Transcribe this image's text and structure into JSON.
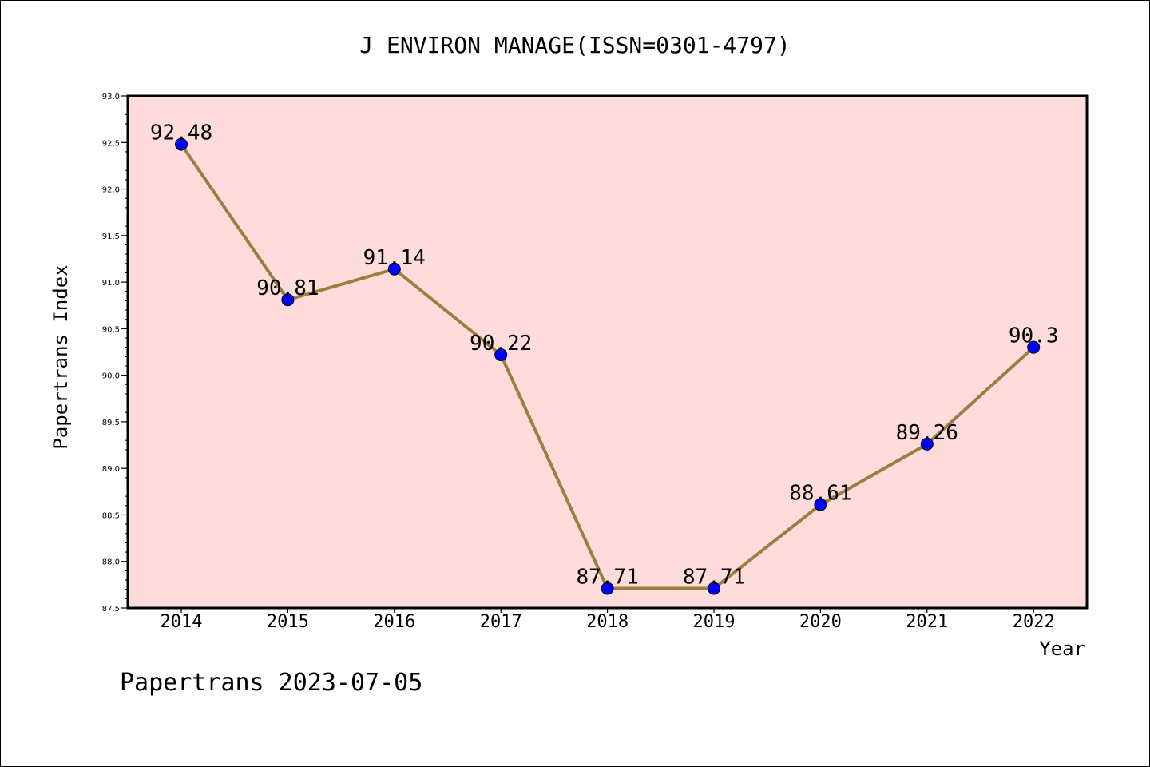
{
  "chart_data": {
    "type": "line",
    "title": "J ENVIRON MANAGE(ISSN=0301-4797)",
    "xlabel": "Year",
    "ylabel": "Papertrans Index",
    "categories": [
      "2014",
      "2015",
      "2016",
      "2017",
      "2018",
      "2019",
      "2020",
      "2021",
      "2022"
    ],
    "values": [
      92.48,
      90.81,
      91.14,
      90.22,
      87.71,
      87.71,
      88.61,
      89.26,
      90.3
    ],
    "data_labels": [
      "92.48",
      "90.81",
      "91.14",
      "90.22",
      "87.71",
      "87.71",
      "88.61",
      "89.26",
      "90.3"
    ],
    "ylim": [
      87.5,
      93.0
    ],
    "yticks": [
      "87.5",
      "88.0",
      "88.5",
      "89.0",
      "89.5",
      "90.0",
      "90.5",
      "91.0",
      "91.5",
      "92.0",
      "92.5",
      "93.0"
    ],
    "grid": false,
    "colors": {
      "plot_background": "#ffdcdc",
      "line": "#9a8040",
      "marker": "#0000ff"
    }
  },
  "footer": {
    "watermark": "Papertrans 2023-07-05"
  }
}
